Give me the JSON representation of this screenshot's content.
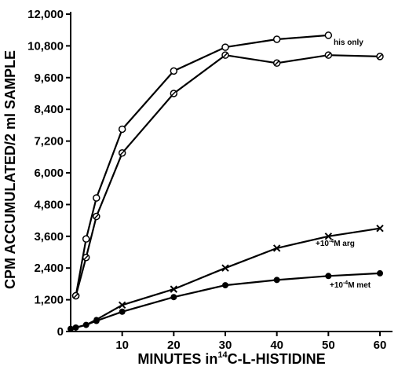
{
  "chart_data": {
    "type": "line",
    "xlabel": "MINUTES in 14C-L-HISTIDINE",
    "xlabel_parts": {
      "pre": "MINUTES in",
      "sup": "14",
      "post": "C-L-HISTIDINE"
    },
    "ylabel": "CPM ACCUMULATED/2 ml SAMPLE",
    "xlim": [
      0,
      61
    ],
    "ylim": [
      0,
      12400
    ],
    "x_ticks": [
      10,
      20,
      30,
      40,
      50,
      60
    ],
    "x_tick_labels": [
      "10",
      "20",
      "30",
      "40",
      "50",
      "60"
    ],
    "y_ticks": [
      0,
      1200,
      2400,
      3600,
      4800,
      6000,
      7200,
      8400,
      9600,
      10800,
      12000
    ],
    "y_tick_labels": [
      "0",
      "1,200",
      "2,400",
      "3,600",
      "4,800",
      "6,000",
      "7,200",
      "8,400",
      "9,600",
      "10,800",
      "12,000"
    ],
    "grid": false,
    "series": [
      {
        "name": "his only",
        "marker": "open-circle",
        "points": [
          [
            1,
            1350
          ],
          [
            3,
            3500
          ],
          [
            5,
            5050
          ],
          [
            10,
            7650
          ],
          [
            20,
            9850
          ],
          [
            30,
            10750
          ],
          [
            40,
            11050
          ],
          [
            50,
            11200
          ]
        ]
      },
      {
        "name": "",
        "marker": "crossed-circle",
        "points": [
          [
            1,
            1350
          ],
          [
            3,
            2800
          ],
          [
            5,
            4350
          ],
          [
            10,
            6750
          ],
          [
            20,
            9000
          ],
          [
            30,
            10450
          ],
          [
            40,
            10150
          ],
          [
            50,
            10450
          ],
          [
            60,
            10400
          ]
        ]
      },
      {
        "name": "+10-4M arg",
        "marker": "x",
        "points": [
          [
            0,
            100
          ],
          [
            1,
            150
          ],
          [
            3,
            250
          ],
          [
            5,
            450
          ],
          [
            10,
            1000
          ],
          [
            20,
            1600
          ],
          [
            30,
            2400
          ],
          [
            40,
            3150
          ],
          [
            50,
            3600
          ],
          [
            60,
            3900
          ]
        ]
      },
      {
        "name": "+10-4M met",
        "marker": "filled-circle",
        "points": [
          [
            0,
            100
          ],
          [
            1,
            150
          ],
          [
            3,
            250
          ],
          [
            5,
            400
          ],
          [
            10,
            750
          ],
          [
            20,
            1300
          ],
          [
            30,
            1750
          ],
          [
            40,
            1950
          ],
          [
            50,
            2100
          ],
          [
            60,
            2200
          ]
        ]
      }
    ],
    "annotations": [
      {
        "id": "his",
        "text": "his only"
      },
      {
        "id": "arg",
        "pre": "+10",
        "sup": "-4",
        "post": "M arg"
      },
      {
        "id": "met",
        "pre": "+10",
        "sup": "-4",
        "post": "M met"
      }
    ]
  }
}
